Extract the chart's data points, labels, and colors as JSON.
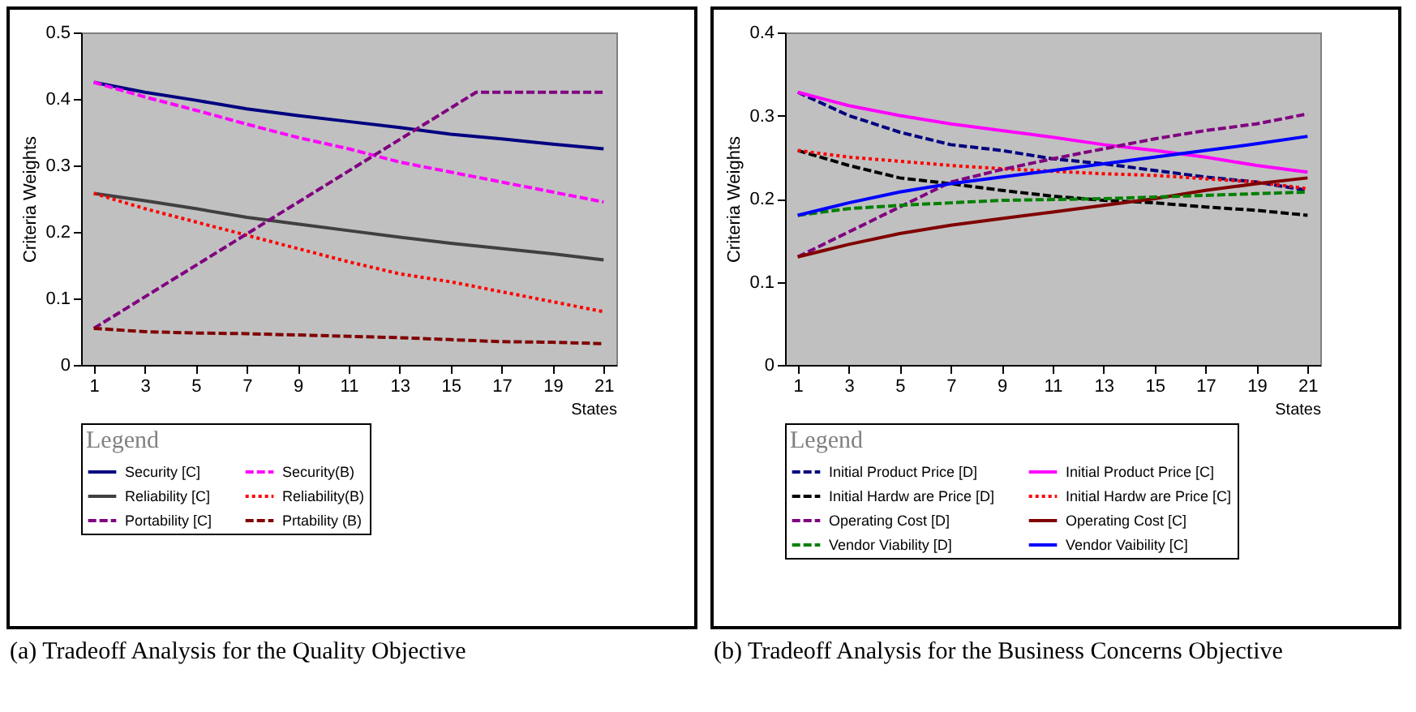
{
  "chart_data": [
    {
      "type": "line",
      "xlabel": "States",
      "ylabel": "Criteria Weights",
      "legend_title": "Legend",
      "legend": "bottom",
      "grid": false,
      "marker": "none",
      "annotations": [
        "(a) Tradeoff Analysis for the Quality Objective"
      ],
      "x": [
        1,
        3,
        5,
        7,
        9,
        11,
        13,
        15,
        17,
        19,
        21
      ],
      "xlim": [
        0.5,
        21.5
      ],
      "xticks": [
        1,
        3,
        5,
        7,
        9,
        11,
        13,
        15,
        17,
        19,
        21
      ],
      "ylim": [
        0,
        0.5
      ],
      "yticks": [
        0,
        0.1,
        0.2,
        0.3,
        0.4,
        0.5
      ],
      "series": [
        {
          "name": "Security [C]",
          "color": "#000080",
          "line_style": "solid",
          "values": [
            0.425,
            0.41,
            0.398,
            0.385,
            0.375,
            0.366,
            0.357,
            0.347,
            0.34,
            0.332,
            0.325
          ]
        },
        {
          "name": "Security(B)",
          "color": "#ff00ff",
          "line_style": "dashed",
          "values": [
            0.425,
            0.403,
            0.383,
            0.362,
            0.342,
            0.325,
            0.305,
            0.29,
            0.275,
            0.26,
            0.245
          ]
        },
        {
          "name": "Reliability [C]",
          "color": "#404040",
          "line_style": "solid",
          "values": [
            0.258,
            0.247,
            0.235,
            0.222,
            0.212,
            0.202,
            0.192,
            0.183,
            0.175,
            0.167,
            0.158
          ]
        },
        {
          "name": "Reliability(B)",
          "color": "#ff0000",
          "line_style": "dotted",
          "values": [
            0.258,
            0.235,
            0.215,
            0.195,
            0.175,
            0.155,
            0.137,
            0.125,
            0.11,
            0.095,
            0.08
          ]
        },
        {
          "name": "Portability [C]",
          "color": "#800080",
          "line_style": "dashed",
          "x": [
            1,
            16,
            21
          ],
          "values": [
            0.055,
            0.41,
            0.41
          ]
        },
        {
          "name": "Prtability (B)",
          "color": "#800000",
          "line_style": "dashed",
          "values": [
            0.055,
            0.05,
            0.048,
            0.047,
            0.045,
            0.043,
            0.041,
            0.038,
            0.035,
            0.034,
            0.032
          ]
        }
      ]
    },
    {
      "type": "line",
      "xlabel": "States",
      "ylabel": "Criteria  Weights",
      "legend_title": "Legend",
      "legend": "bottom",
      "grid": false,
      "marker": "none",
      "annotations": [
        "(b) Tradeoff Analysis for the Business Concerns Objective"
      ],
      "x": [
        1,
        3,
        5,
        7,
        9,
        11,
        13,
        15,
        17,
        19,
        21
      ],
      "xlim": [
        0.5,
        21.5
      ],
      "xticks": [
        1,
        3,
        5,
        7,
        9,
        11,
        13,
        15,
        17,
        19,
        21
      ],
      "ylim": [
        0,
        0.4
      ],
      "yticks": [
        0,
        0.1,
        0.2,
        0.3,
        0.4
      ],
      "series": [
        {
          "name": "Initial Product Price [D]",
          "color": "#000080",
          "line_style": "dashed",
          "values": [
            0.328,
            0.3,
            0.28,
            0.265,
            0.258,
            0.248,
            0.242,
            0.234,
            0.226,
            0.22,
            0.21
          ]
        },
        {
          "name": "Initial Product Price [C]",
          "color": "#ff00ff",
          "line_style": "solid",
          "values": [
            0.328,
            0.312,
            0.3,
            0.29,
            0.282,
            0.274,
            0.265,
            0.258,
            0.25,
            0.24,
            0.232
          ]
        },
        {
          "name": "Initial Hardw are Price [D]",
          "color": "#000000",
          "line_style": "dashed",
          "values": [
            0.258,
            0.24,
            0.225,
            0.218,
            0.21,
            0.203,
            0.198,
            0.195,
            0.19,
            0.186,
            0.18
          ]
        },
        {
          "name": "Initial Hardw are Price [C]",
          "color": "#ff0000",
          "line_style": "dotted",
          "values": [
            0.258,
            0.25,
            0.245,
            0.24,
            0.236,
            0.233,
            0.23,
            0.228,
            0.224,
            0.22,
            0.212
          ]
        },
        {
          "name": "Operating Cost [D]",
          "color": "#800080",
          "line_style": "dashed",
          "values": [
            0.13,
            0.16,
            0.19,
            0.22,
            0.235,
            0.248,
            0.26,
            0.272,
            0.282,
            0.29,
            0.302
          ]
        },
        {
          "name": "Operating Cost [C]",
          "color": "#800000",
          "line_style": "solid",
          "values": [
            0.13,
            0.145,
            0.158,
            0.168,
            0.176,
            0.184,
            0.192,
            0.2,
            0.21,
            0.218,
            0.225
          ]
        },
        {
          "name": "Vendor Viability [D]",
          "color": "#008000",
          "line_style": "dashed",
          "values": [
            0.18,
            0.188,
            0.192,
            0.195,
            0.198,
            0.199,
            0.2,
            0.202,
            0.204,
            0.206,
            0.208
          ]
        },
        {
          "name": "Vendor Vaibility [C]",
          "color": "#0000ff",
          "line_style": "solid",
          "values": [
            0.18,
            0.195,
            0.208,
            0.218,
            0.226,
            0.234,
            0.242,
            0.25,
            0.258,
            0.266,
            0.275
          ]
        }
      ]
    }
  ]
}
